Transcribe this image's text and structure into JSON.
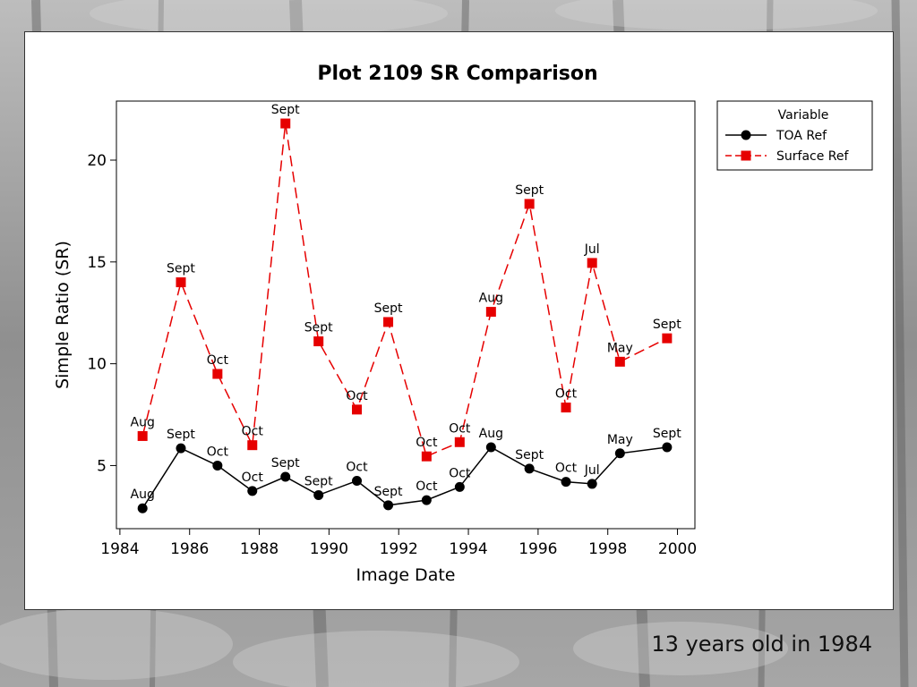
{
  "caption": "13 years old in 1984",
  "colors": {
    "toa": "#000000",
    "surface": "#e60000"
  },
  "chart_data": {
    "type": "line",
    "title": "Plot 2109 SR Comparison",
    "xlabel": "Image Date",
    "ylabel": "Simple Ratio (SR)",
    "xlim": [
      1983.9,
      2000.5
    ],
    "ylim": [
      1.9,
      22.9
    ],
    "x_ticks": [
      1984,
      1986,
      1988,
      1990,
      1992,
      1994,
      1996,
      1998,
      2000
    ],
    "y_ticks": [
      5,
      10,
      15,
      20
    ],
    "grid": false,
    "legend": {
      "title": "Variable",
      "position": "right-outside"
    },
    "series": [
      {
        "name": "TOA Ref",
        "marker": "circle",
        "line": "solid",
        "color": "#000000",
        "points": [
          {
            "x": 1984.65,
            "y": 2.9,
            "label": "Aug"
          },
          {
            "x": 1985.75,
            "y": 5.85,
            "label": "Sept"
          },
          {
            "x": 1986.8,
            "y": 5.0,
            "label": "Oct"
          },
          {
            "x": 1987.8,
            "y": 3.75,
            "label": "Oct"
          },
          {
            "x": 1988.75,
            "y": 4.45,
            "label": "Sept"
          },
          {
            "x": 1989.7,
            "y": 3.55,
            "label": "Sept"
          },
          {
            "x": 1990.8,
            "y": 4.25,
            "label": "Oct"
          },
          {
            "x": 1991.7,
            "y": 3.05,
            "label": "Sept"
          },
          {
            "x": 1992.8,
            "y": 3.3,
            "label": "Oct"
          },
          {
            "x": 1993.75,
            "y": 3.95,
            "label": "Oct"
          },
          {
            "x": 1994.65,
            "y": 5.9,
            "label": "Aug"
          },
          {
            "x": 1995.75,
            "y": 4.85,
            "label": "Sept"
          },
          {
            "x": 1996.8,
            "y": 4.2,
            "label": "Oct"
          },
          {
            "x": 1997.55,
            "y": 4.1,
            "label": "Jul"
          },
          {
            "x": 1998.35,
            "y": 5.6,
            "label": "May"
          },
          {
            "x": 1999.7,
            "y": 5.9,
            "label": "Sept"
          }
        ]
      },
      {
        "name": "Surface Ref",
        "marker": "square",
        "line": "dashed",
        "color": "#e60000",
        "points": [
          {
            "x": 1984.65,
            "y": 6.45,
            "label": "Aug"
          },
          {
            "x": 1985.75,
            "y": 14.0,
            "label": "Sept"
          },
          {
            "x": 1986.8,
            "y": 9.5,
            "label": "Oct"
          },
          {
            "x": 1987.8,
            "y": 6.0,
            "label": "Oct"
          },
          {
            "x": 1988.75,
            "y": 21.8,
            "label": "Sept"
          },
          {
            "x": 1989.7,
            "y": 11.1,
            "label": "Sept"
          },
          {
            "x": 1990.8,
            "y": 7.75,
            "label": "Oct"
          },
          {
            "x": 1991.7,
            "y": 12.05,
            "label": "Sept"
          },
          {
            "x": 1992.8,
            "y": 5.45,
            "label": "Oct"
          },
          {
            "x": 1993.75,
            "y": 6.15,
            "label": "Oct"
          },
          {
            "x": 1994.65,
            "y": 12.55,
            "label": "Aug"
          },
          {
            "x": 1995.75,
            "y": 17.85,
            "label": "Sept"
          },
          {
            "x": 1996.8,
            "y": 7.85,
            "label": "Oct"
          },
          {
            "x": 1997.55,
            "y": 14.95,
            "label": "Jul"
          },
          {
            "x": 1998.35,
            "y": 10.1,
            "label": "May"
          },
          {
            "x": 1999.7,
            "y": 11.25,
            "label": "Sept"
          }
        ]
      }
    ]
  }
}
